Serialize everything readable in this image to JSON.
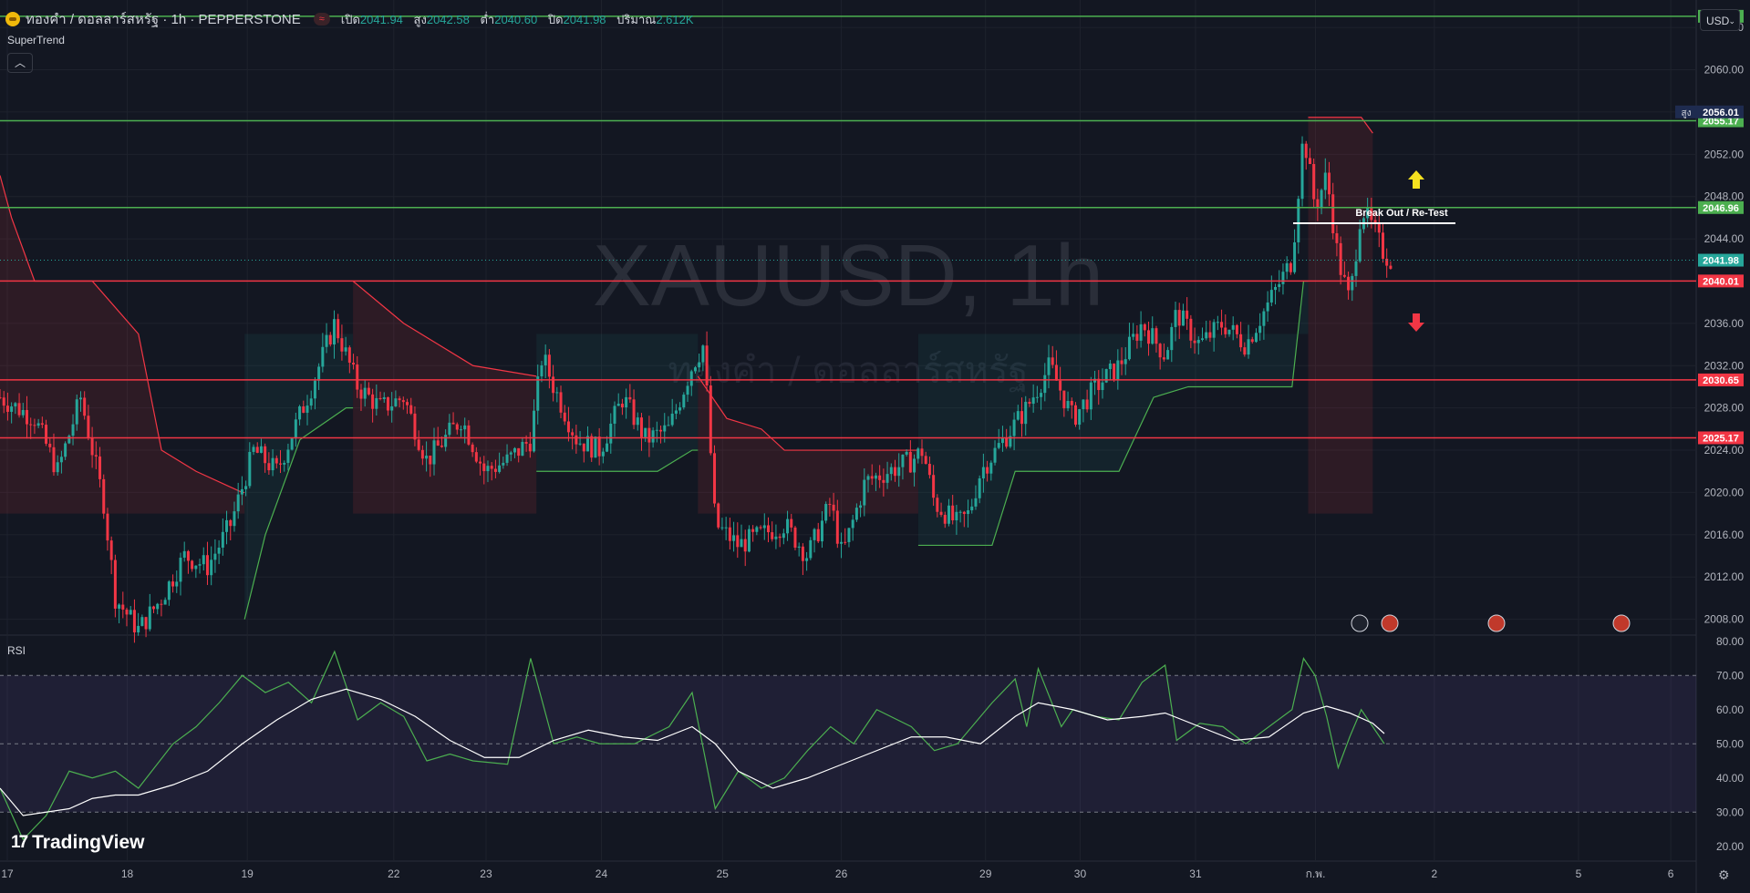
{
  "header": {
    "symbol_title": "ทองคำ / ดอลลาร์สหรัฐ · 1h · PEPPERSTONE",
    "open_label": "เปิด",
    "open": "2041.94",
    "high_label": "สูง",
    "high": "2042.58",
    "low_label": "ต่ำ",
    "low": "2040.60",
    "close_label": "ปิด",
    "close": "2041.98",
    "volume_label": "ปริมาณ",
    "volume": "2.612K"
  },
  "indicator_label": "SuperTrend",
  "rsi_label": "RSI",
  "currency": "USD",
  "watermark": {
    "main": "XAUUSD, 1h",
    "sub": "ทองคำ / ดอลลาร์สหรัฐ"
  },
  "brand": "TradingView",
  "annotation": "Break Out / Re-Test",
  "colors": {
    "up": "#26a69a",
    "down": "#f23645",
    "support": "#4caf50",
    "resistance": "#f23645",
    "rsi": "#4caf50",
    "rsi_ma": "#ffffff",
    "bg": "#131722"
  },
  "chart_data": {
    "type": "candlestick",
    "price_axis": {
      "ticks": [
        "2064.00",
        "2060.00",
        "2056.00",
        "2052.00",
        "2048.00",
        "2044.00",
        "2040.00",
        "2036.00",
        "2032.00",
        "2028.00",
        "2024.00",
        "2020.00",
        "2016.00",
        "2012.00",
        "2008.00"
      ],
      "range": [
        2006.5,
        2066.6
      ]
    },
    "time_axis": {
      "labels": [
        "17",
        "18",
        "19",
        "22",
        "23",
        "24",
        "25",
        "26",
        "29",
        "30",
        "31",
        "ก.พ.",
        "2",
        "5",
        "6"
      ],
      "positions": [
        0,
        10.4,
        20.8,
        33.5,
        41.5,
        51.5,
        62,
        72.3,
        84.8,
        93,
        103,
        113.4,
        123.7,
        136.2,
        144.2
      ]
    },
    "horizontal_levels": [
      {
        "price": 2065.06,
        "label": "2065.06",
        "kind": "support"
      },
      {
        "price": 2055.17,
        "label": "2055.17",
        "kind": "support"
      },
      {
        "price": 2046.96,
        "label": "2046.96",
        "kind": "support"
      },
      {
        "price": 2040.01,
        "label": "2040.01",
        "kind": "resistance"
      },
      {
        "price": 2030.65,
        "label": "2030.65",
        "kind": "resistance"
      },
      {
        "price": 2025.17,
        "label": "2025.17",
        "kind": "resistance"
      }
    ],
    "high_marker": {
      "label": "สูง",
      "price": "2056.01"
    },
    "last_price": "2041.98",
    "price_path": [
      [
        0,
        2029
      ],
      [
        3,
        2027
      ],
      [
        5,
        2022
      ],
      [
        7,
        2029
      ],
      [
        9,
        2019
      ],
      [
        10,
        2010
      ],
      [
        12,
        2007
      ],
      [
        14,
        2010
      ],
      [
        16,
        2014
      ],
      [
        18,
        2013
      ],
      [
        20,
        2017
      ],
      [
        22,
        2024
      ],
      [
        24,
        2022
      ],
      [
        27,
        2030
      ],
      [
        29,
        2036
      ],
      [
        31,
        2030
      ],
      [
        33,
        2028
      ],
      [
        35,
        2029
      ],
      [
        37,
        2023
      ],
      [
        40,
        2027
      ],
      [
        42,
        2022
      ],
      [
        44,
        2023
      ],
      [
        46,
        2025
      ],
      [
        47,
        2033
      ],
      [
        48,
        2030
      ],
      [
        50,
        2025
      ],
      [
        52,
        2024
      ],
      [
        54,
        2029
      ],
      [
        56,
        2025
      ],
      [
        58,
        2026
      ],
      [
        60,
        2032
      ],
      [
        61,
        2034
      ],
      [
        62,
        2017
      ],
      [
        64,
        2015
      ],
      [
        66,
        2016
      ],
      [
        68,
        2017
      ],
      [
        70,
        2014
      ],
      [
        72,
        2019
      ],
      [
        73,
        2014
      ],
      [
        75,
        2021
      ],
      [
        77,
        2022
      ],
      [
        79,
        2023
      ],
      [
        80,
        2024
      ],
      [
        81,
        2019
      ],
      [
        83,
        2017
      ],
      [
        84,
        2018
      ],
      [
        85,
        2022
      ],
      [
        87,
        2025
      ],
      [
        89,
        2028
      ],
      [
        91,
        2032
      ],
      [
        93,
        2027
      ],
      [
        95,
        2030
      ],
      [
        97,
        2032
      ],
      [
        99,
        2036
      ],
      [
        101,
        2033
      ],
      [
        102,
        2037
      ],
      [
        104,
        2034
      ],
      [
        106,
        2036
      ],
      [
        108,
        2034
      ],
      [
        110,
        2038
      ],
      [
        112,
        2042
      ],
      [
        113,
        2054
      ],
      [
        114,
        2047
      ],
      [
        115,
        2050
      ],
      [
        116,
        2042
      ],
      [
        117,
        2038
      ],
      [
        118,
        2047
      ],
      [
        119,
        2045
      ],
      [
        120,
        2042.5
      ],
      [
        120.6,
        2041.98
      ]
    ],
    "supertrend": [
      {
        "trend": "down",
        "points": [
          [
            0,
            2050
          ],
          [
            1,
            2046
          ],
          [
            3,
            2040
          ],
          [
            8,
            2040
          ],
          [
            12,
            2035
          ],
          [
            14,
            2024
          ],
          [
            17,
            2022
          ],
          [
            21,
            2020
          ],
          [
            21.2,
            2020
          ]
        ]
      },
      {
        "trend": "up",
        "points": [
          [
            21.2,
            2008
          ],
          [
            23,
            2016
          ],
          [
            26,
            2025
          ],
          [
            30,
            2028
          ],
          [
            30.6,
            2028
          ]
        ]
      },
      {
        "trend": "down",
        "points": [
          [
            30.6,
            2040
          ],
          [
            35,
            2036
          ],
          [
            41,
            2032
          ],
          [
            46.5,
            2031
          ]
        ]
      },
      {
        "trend": "up",
        "points": [
          [
            46.5,
            2022
          ],
          [
            54,
            2022
          ],
          [
            57,
            2022
          ],
          [
            60,
            2024
          ],
          [
            60.5,
            2024
          ]
        ]
      },
      {
        "trend": "down",
        "points": [
          [
            60.5,
            2031
          ],
          [
            63,
            2027
          ],
          [
            66,
            2026
          ],
          [
            68,
            2024
          ],
          [
            79.6,
            2024
          ]
        ]
      },
      {
        "trend": "up",
        "points": [
          [
            79.6,
            2015
          ],
          [
            86,
            2015
          ],
          [
            88,
            2022
          ],
          [
            97,
            2022
          ],
          [
            100,
            2029
          ],
          [
            103,
            2030
          ],
          [
            112,
            2030
          ],
          [
            113,
            2040
          ],
          [
            113.4,
            2040
          ]
        ]
      },
      {
        "trend": "down",
        "points": [
          [
            113.4,
            2055.5
          ],
          [
            118,
            2055.5
          ],
          [
            119,
            2054
          ]
        ]
      }
    ],
    "rsi": {
      "axis_ticks": [
        "80.00",
        "70.00",
        "60.00",
        "50.00",
        "40.00",
        "30.00",
        "20.00"
      ],
      "range": [
        17,
        81
      ],
      "band": [
        30,
        70
      ],
      "values": [
        [
          0,
          37
        ],
        [
          2,
          22
        ],
        [
          4,
          29
        ],
        [
          6,
          42
        ],
        [
          8,
          40
        ],
        [
          10,
          42
        ],
        [
          12,
          37
        ],
        [
          15,
          50
        ],
        [
          17,
          55
        ],
        [
          19,
          62
        ],
        [
          21,
          70
        ],
        [
          23,
          65
        ],
        [
          25,
          68
        ],
        [
          27,
          62
        ],
        [
          29,
          77
        ],
        [
          31,
          57
        ],
        [
          33,
          62
        ],
        [
          35,
          58
        ],
        [
          37,
          45
        ],
        [
          39,
          47
        ],
        [
          41,
          45
        ],
        [
          44,
          44
        ],
        [
          46,
          75
        ],
        [
          48,
          50
        ],
        [
          50,
          52
        ],
        [
          52,
          50
        ],
        [
          55,
          50
        ],
        [
          58,
          55
        ],
        [
          60,
          65
        ],
        [
          62,
          31
        ],
        [
          64,
          42
        ],
        [
          66,
          37
        ],
        [
          68,
          40
        ],
        [
          70,
          48
        ],
        [
          72,
          55
        ],
        [
          74,
          50
        ],
        [
          76,
          60
        ],
        [
          79,
          55
        ],
        [
          81,
          48
        ],
        [
          83,
          50
        ],
        [
          86,
          62
        ],
        [
          88,
          69
        ],
        [
          89,
          55
        ],
        [
          90,
          72
        ],
        [
          92,
          55
        ],
        [
          93,
          60
        ],
        [
          95,
          58
        ],
        [
          97,
          57
        ],
        [
          99,
          68
        ],
        [
          101,
          73
        ],
        [
          102,
          51
        ],
        [
          104,
          56
        ],
        [
          106,
          55
        ],
        [
          108,
          50
        ],
        [
          110,
          55
        ],
        [
          112,
          60
        ],
        [
          113,
          75
        ],
        [
          114,
          70
        ],
        [
          115,
          58
        ],
        [
          116,
          43
        ],
        [
          117,
          52
        ],
        [
          118,
          60
        ],
        [
          120,
          50
        ]
      ],
      "ma": [
        [
          0,
          37
        ],
        [
          2,
          29
        ],
        [
          4,
          30
        ],
        [
          6,
          31
        ],
        [
          8,
          34
        ],
        [
          10,
          35
        ],
        [
          12,
          35
        ],
        [
          15,
          38
        ],
        [
          18,
          42
        ],
        [
          21,
          50
        ],
        [
          24,
          57
        ],
        [
          27,
          63
        ],
        [
          30,
          66
        ],
        [
          33,
          63
        ],
        [
          36,
          58
        ],
        [
          39,
          51
        ],
        [
          42,
          46
        ],
        [
          45,
          46
        ],
        [
          48,
          51
        ],
        [
          51,
          54
        ],
        [
          54,
          52
        ],
        [
          57,
          51
        ],
        [
          60,
          55
        ],
        [
          62,
          50
        ],
        [
          64,
          42
        ],
        [
          67,
          37
        ],
        [
          70,
          40
        ],
        [
          73,
          44
        ],
        [
          76,
          48
        ],
        [
          79,
          52
        ],
        [
          82,
          52
        ],
        [
          85,
          50
        ],
        [
          88,
          58
        ],
        [
          90,
          62
        ],
        [
          93,
          60
        ],
        [
          96,
          57
        ],
        [
          99,
          58
        ],
        [
          101,
          59
        ],
        [
          104,
          55
        ],
        [
          107,
          51
        ],
        [
          110,
          52
        ],
        [
          113,
          59
        ],
        [
          115,
          61
        ],
        [
          117,
          59
        ],
        [
          119,
          56
        ],
        [
          120,
          53
        ]
      ]
    }
  }
}
